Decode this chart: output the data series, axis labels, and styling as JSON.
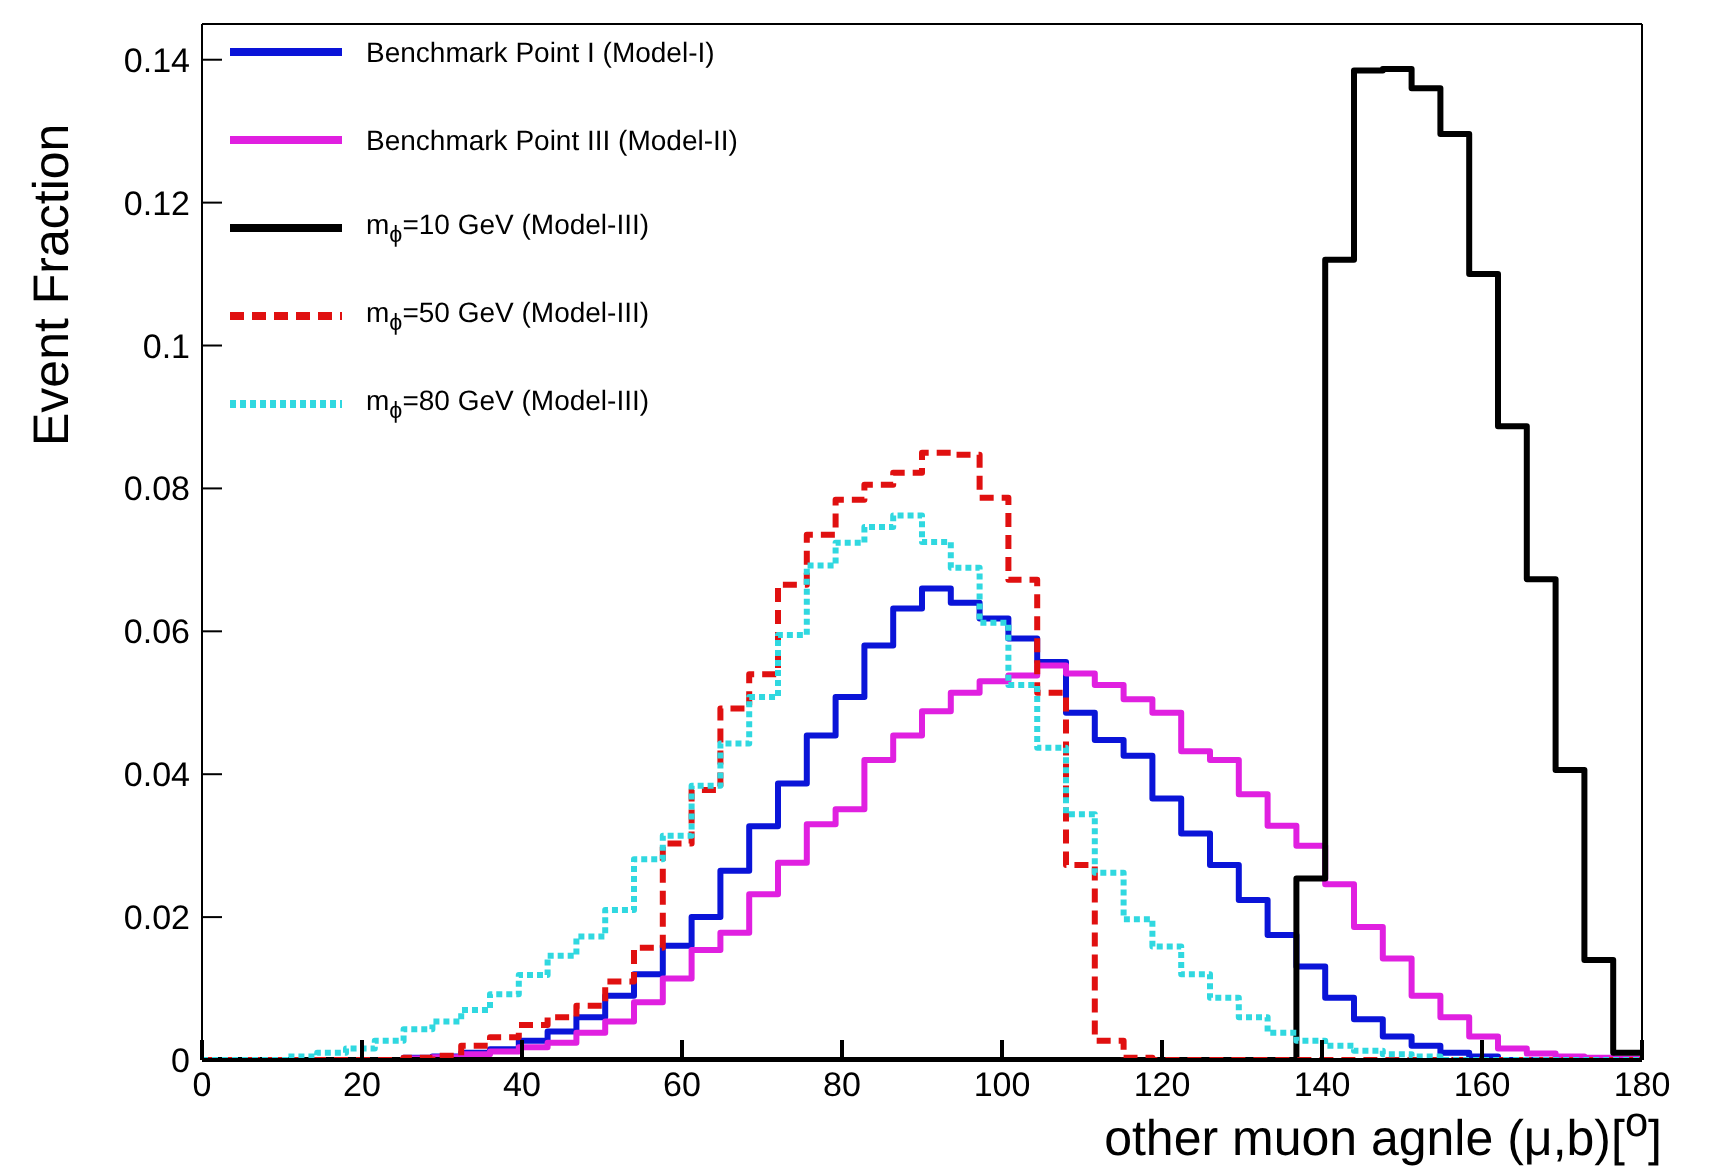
{
  "chart_data": {
    "type": "histogram",
    "xlabel": "other muon agnle (μ,b)[$^{o}$]",
    "ylabel": "Event Fraction",
    "bins": [
      0,
      3.6,
      7.2,
      10.8,
      14.4,
      18,
      21.6,
      25.2,
      28.8,
      32.4,
      36,
      39.6,
      43.2,
      46.8,
      50.4,
      54,
      57.6,
      61.2,
      64.8,
      68.4,
      72,
      75.6,
      79.2,
      82.8,
      86.4,
      90,
      93.6,
      97.2,
      100.8,
      104.4,
      108,
      111.6,
      115.2,
      118.8,
      122.4,
      126,
      129.6,
      133.2,
      136.8,
      140.4,
      144,
      147.6,
      151.2,
      154.8,
      158.4,
      162,
      165.6,
      169.2,
      172.8,
      176.4,
      180
    ],
    "xlim": [
      0,
      180
    ],
    "xticks": [
      0,
      20,
      40,
      60,
      80,
      100,
      120,
      140,
      160,
      180
    ],
    "ylim": [
      0,
      0.145
    ],
    "yticks": [
      0,
      0.02,
      0.04,
      0.06,
      0.08,
      0.1,
      0.12,
      0.14
    ],
    "legend": "top left",
    "series": [
      {
        "name": "Benchmark Point I (Model-I)",
        "color": "#0a14d8",
        "line_style": "solid",
        "values": [
          0,
          0,
          0,
          0,
          0,
          0,
          0,
          0.0003,
          0.0005,
          0.001,
          0.0015,
          0.0027,
          0.004,
          0.006,
          0.009,
          0.012,
          0.016,
          0.02,
          0.0265,
          0.0327,
          0.0387,
          0.0454,
          0.0508,
          0.058,
          0.0632,
          0.066,
          0.064,
          0.0618,
          0.059,
          0.0557,
          0.0486,
          0.0448,
          0.0426,
          0.0366,
          0.0317,
          0.0273,
          0.0224,
          0.0175,
          0.0131,
          0.0087,
          0.0057,
          0.0033,
          0.002,
          0.001,
          0.0005,
          0,
          0,
          0,
          0,
          0
        ]
      },
      {
        "name": "Benchmark Point III (Model-II)",
        "color": "#e020e0",
        "line_style": "solid",
        "values": [
          0,
          0,
          0,
          0,
          0,
          0,
          0,
          0.0002,
          0.0004,
          0.0008,
          0.0012,
          0.0018,
          0.0024,
          0.0038,
          0.0054,
          0.0081,
          0.0114,
          0.0154,
          0.0178,
          0.0232,
          0.0276,
          0.033,
          0.0351,
          0.042,
          0.0454,
          0.0488,
          0.0514,
          0.053,
          0.0538,
          0.0552,
          0.0541,
          0.0525,
          0.0505,
          0.0486,
          0.0432,
          0.042,
          0.0372,
          0.0328,
          0.03,
          0.0246,
          0.0186,
          0.0142,
          0.009,
          0.006,
          0.0033,
          0.0016,
          0.0009,
          0.0005,
          0.0003,
          0.0002
        ]
      },
      {
        "name": "m$_{ϕ}$=10 GeV (Model-III)",
        "color": "#000000",
        "line_style": "solid",
        "values": [
          0,
          0,
          0,
          0,
          0,
          0,
          0,
          0,
          0,
          0,
          0,
          0,
          0,
          0,
          0,
          0,
          0,
          0,
          0,
          0,
          0,
          0,
          0,
          0,
          0,
          0,
          0,
          0,
          0,
          0,
          0,
          0,
          0,
          0,
          0,
          0,
          0,
          0,
          0.0254,
          0.112,
          0.1385,
          0.1387,
          0.136,
          0.1296,
          0.11,
          0.0887,
          0.0673,
          0.0406,
          0.014,
          0.001
        ]
      },
      {
        "name": "m$_{ϕ}$=50 GeV (Model-III)",
        "color": "#e01010",
        "line_style": "dashed",
        "values": [
          0,
          0,
          0,
          0,
          0,
          0,
          0,
          0.0003,
          0.0006,
          0.002,
          0.0032,
          0.0049,
          0.006,
          0.0076,
          0.011,
          0.0157,
          0.0303,
          0.0378,
          0.0492,
          0.054,
          0.0665,
          0.0735,
          0.0784,
          0.0805,
          0.0822,
          0.085,
          0.0847,
          0.0787,
          0.0672,
          0.0514,
          0.0273,
          0.0027,
          0.0003,
          0,
          0,
          0,
          0,
          0,
          0,
          0,
          0,
          0,
          0,
          0,
          0,
          0,
          0,
          0,
          0,
          0
        ]
      },
      {
        "name": "m$_{ϕ}$=80 GeV (Model-III)",
        "color": "#30d8e0",
        "line_style": "dotted",
        "values": [
          0,
          0,
          0,
          0.0005,
          0.001,
          0.0016,
          0.0027,
          0.0043,
          0.0054,
          0.007,
          0.0092,
          0.0119,
          0.0146,
          0.0173,
          0.021,
          0.0281,
          0.0314,
          0.0384,
          0.0443,
          0.0508,
          0.0595,
          0.0692,
          0.0724,
          0.0746,
          0.0762,
          0.0725,
          0.0689,
          0.0612,
          0.0525,
          0.0437,
          0.0344,
          0.0262,
          0.0197,
          0.0159,
          0.012,
          0.0087,
          0.006,
          0.0038,
          0.0027,
          0.002,
          0.0013,
          0.0008,
          0.0005,
          0,
          0,
          0,
          0,
          0,
          0,
          0
        ]
      }
    ]
  }
}
